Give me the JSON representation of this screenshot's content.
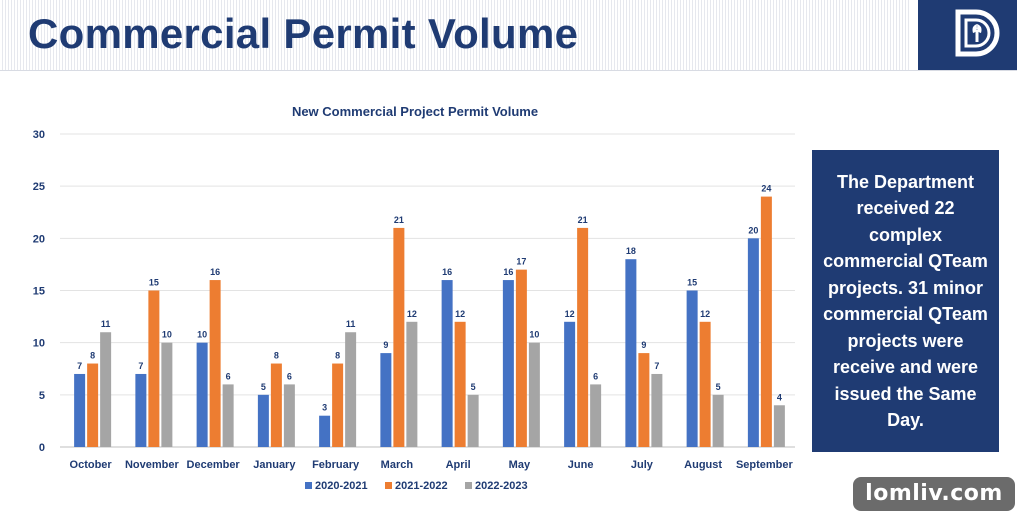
{
  "header": {
    "title": "Commercial Permit Volume"
  },
  "colors": {
    "brand": "#1f3b73",
    "series": [
      "#4472c4",
      "#ed7d31",
      "#a5a5a5"
    ]
  },
  "info_box": {
    "text": "The Department received 22 complex commercial QTeam projects. 31 minor commercial QTeam projects were receive and were issued the Same Day."
  },
  "watermark": {
    "text": "lomliv.com"
  },
  "chart_data": {
    "type": "bar",
    "title": "New Commercial Project Permit Volume",
    "categories": [
      "October",
      "November",
      "December",
      "January",
      "February",
      "March",
      "April",
      "May",
      "June",
      "July",
      "August",
      "September"
    ],
    "series": [
      {
        "name": "2020-2021",
        "values": [
          7,
          7,
          10,
          5,
          3,
          9,
          16,
          16,
          12,
          18,
          15,
          20
        ]
      },
      {
        "name": "2021-2022",
        "values": [
          8,
          15,
          16,
          8,
          8,
          21,
          12,
          17,
          21,
          9,
          12,
          24
        ]
      },
      {
        "name": "2022-2023",
        "values": [
          11,
          10,
          6,
          6,
          11,
          12,
          5,
          10,
          6,
          7,
          5,
          4
        ]
      }
    ],
    "ylim": [
      0,
      30
    ],
    "yticks": [
      0,
      5,
      10,
      15,
      20,
      25,
      30
    ],
    "grid": true,
    "legend_position": "bottom",
    "data_labels": true
  }
}
